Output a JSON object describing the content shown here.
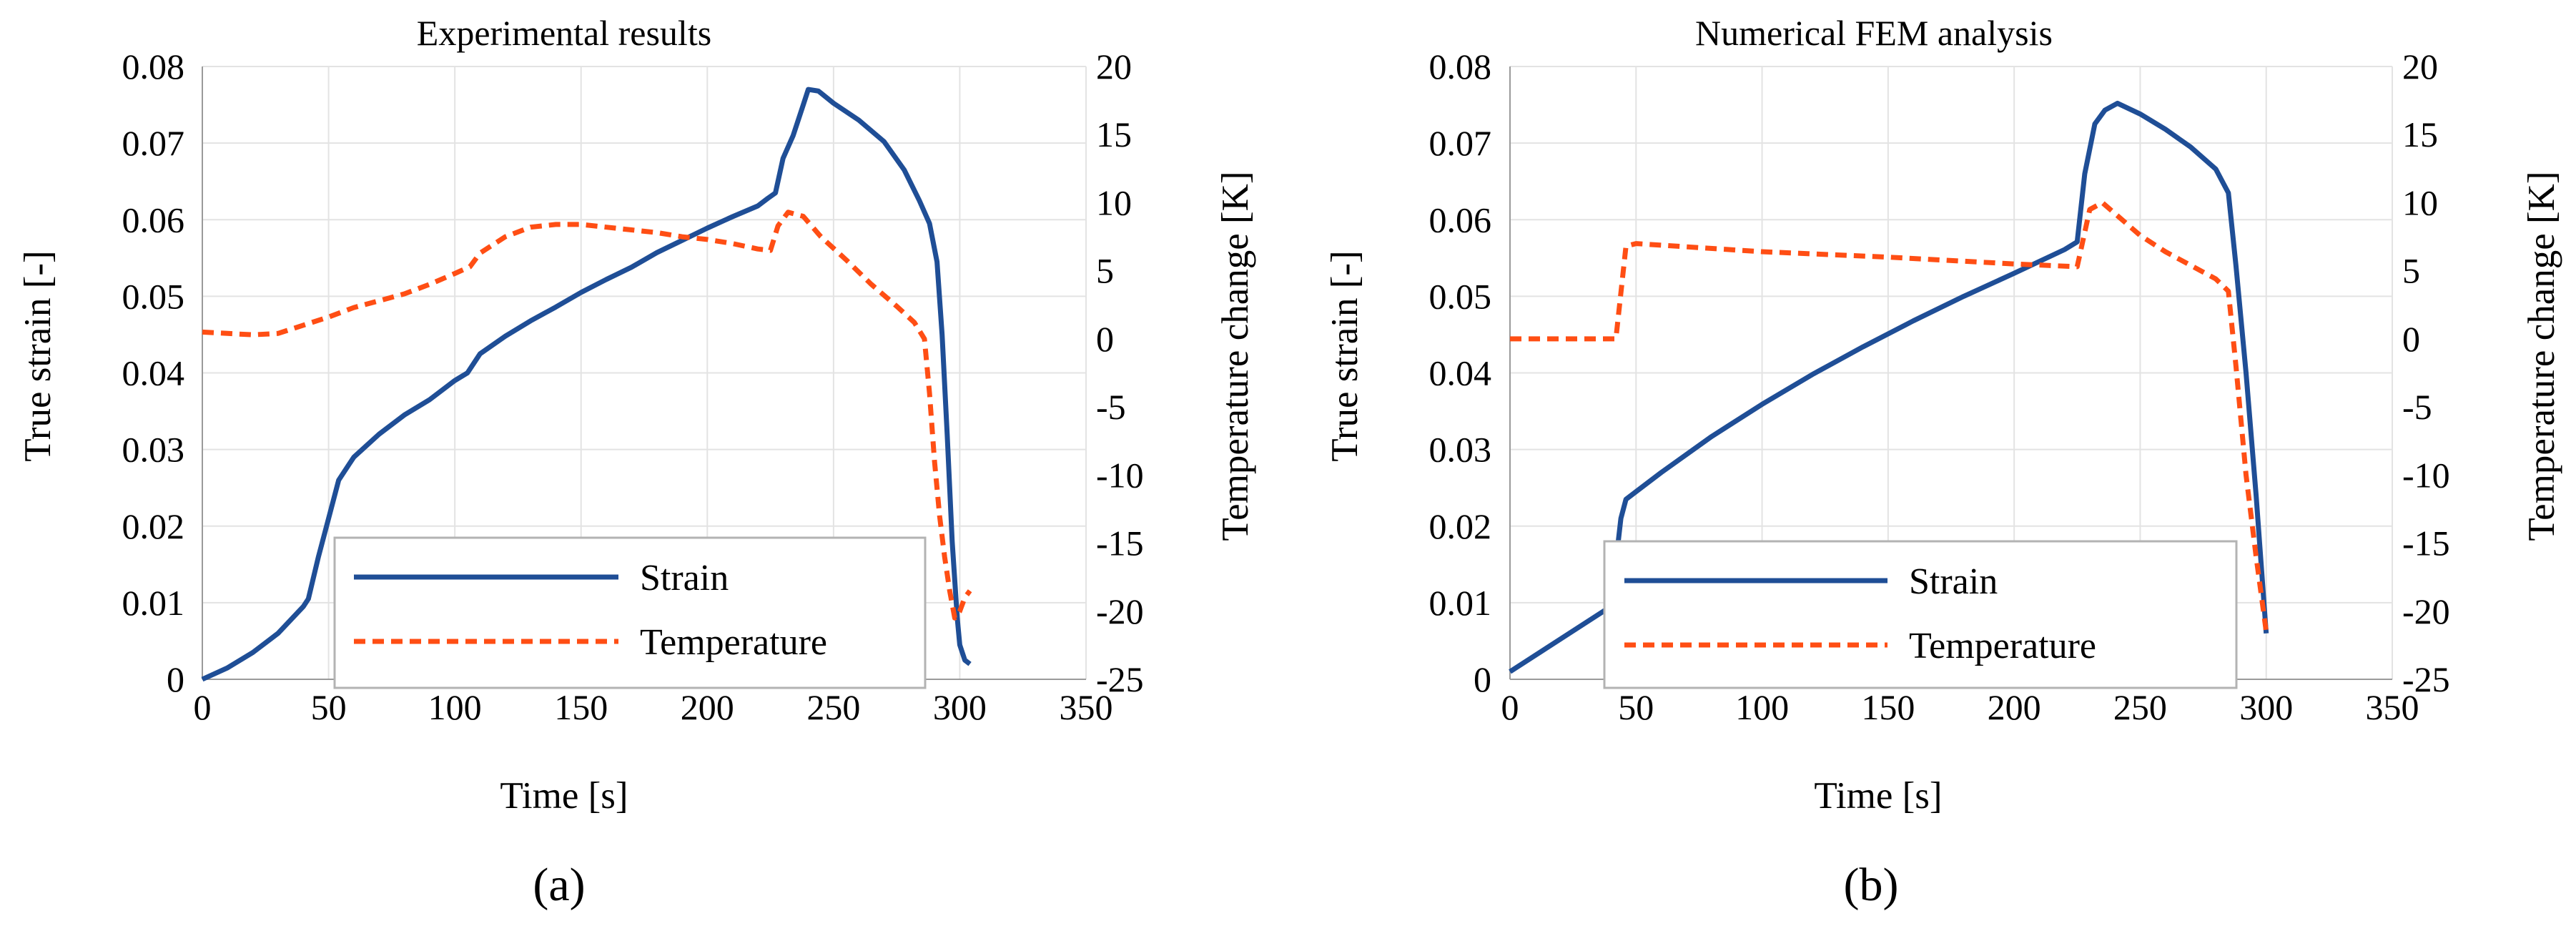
{
  "figure": {
    "panels": [
      "(a)",
      "(b)"
    ]
  },
  "legend": {
    "strain_label": "Strain",
    "temperature_label": "Temperature"
  },
  "colors": {
    "strain": "#1f4e96",
    "temperature": "#ff4e14",
    "grid": "#e3e3e3",
    "legend_border": "#b3b3b3"
  },
  "chart_data": [
    {
      "type": "line",
      "title": "Experimental results",
      "caption": "(a)",
      "xlabel": "Time [s]",
      "ylabel": "True strain [-]",
      "y2label": "Temperature change [K]",
      "xlim": [
        0,
        350
      ],
      "ylim": [
        0,
        0.08
      ],
      "y2lim": [
        -25,
        20
      ],
      "xticks": [
        "0",
        "50",
        "100",
        "150",
        "200",
        "250",
        "300",
        "350"
      ],
      "yticks": [
        "0",
        "0.01",
        "0.02",
        "0.03",
        "0.04",
        "0.05",
        "0.06",
        "0.07",
        "0.08"
      ],
      "y2ticks": [
        "-25",
        "-20",
        "-15",
        "-10",
        "-5",
        "0",
        "5",
        "10",
        "15",
        "20"
      ],
      "legend_position": "bottom-center",
      "series": [
        {
          "name": "Strain",
          "axis": "left",
          "style": "solid",
          "points": [
            [
              0,
              0
            ],
            [
              10,
              0.0015
            ],
            [
              20,
              0.0035
            ],
            [
              30,
              0.006
            ],
            [
              40,
              0.0095
            ],
            [
              42,
              0.0105
            ],
            [
              46,
              0.016
            ],
            [
              50,
              0.021
            ],
            [
              54,
              0.026
            ],
            [
              58,
              0.028
            ],
            [
              60,
              0.029
            ],
            [
              70,
              0.032
            ],
            [
              80,
              0.0345
            ],
            [
              90,
              0.0365
            ],
            [
              100,
              0.039
            ],
            [
              105,
              0.04
            ],
            [
              110,
              0.0425
            ],
            [
              120,
              0.0448
            ],
            [
              130,
              0.0468
            ],
            [
              140,
              0.0486
            ],
            [
              150,
              0.0505
            ],
            [
              160,
              0.0522
            ],
            [
              170,
              0.0538
            ],
            [
              180,
              0.0557
            ],
            [
              190,
              0.0573
            ],
            [
              200,
              0.0589
            ],
            [
              210,
              0.0604
            ],
            [
              220,
              0.0618
            ],
            [
              224,
              0.0628
            ],
            [
              227,
              0.0635
            ],
            [
              230,
              0.068
            ],
            [
              234,
              0.071
            ],
            [
              238,
              0.075
            ],
            [
              240,
              0.077
            ],
            [
              244,
              0.0768
            ],
            [
              250,
              0.0752
            ],
            [
              260,
              0.073
            ],
            [
              270,
              0.0702
            ],
            [
              278,
              0.0665
            ],
            [
              284,
              0.0625
            ],
            [
              288,
              0.0595
            ],
            [
              291,
              0.0545
            ],
            [
              293,
              0.045
            ],
            [
              295,
              0.032
            ],
            [
              297,
              0.018
            ],
            [
              299,
              0.008
            ],
            [
              300,
              0.0045
            ],
            [
              302,
              0.0025
            ],
            [
              304,
              0.002
            ]
          ]
        },
        {
          "name": "Temperature",
          "axis": "right",
          "style": "dashed",
          "points": [
            [
              0,
              0.5
            ],
            [
              10,
              0.4
            ],
            [
              20,
              0.3
            ],
            [
              30,
              0.4
            ],
            [
              40,
              1.0
            ],
            [
              50,
              1.6
            ],
            [
              60,
              2.3
            ],
            [
              70,
              2.8
            ],
            [
              80,
              3.3
            ],
            [
              90,
              4.0
            ],
            [
              100,
              4.8
            ],
            [
              106,
              5.3
            ],
            [
              110,
              6.3
            ],
            [
              120,
              7.5
            ],
            [
              130,
              8.2
            ],
            [
              140,
              8.4
            ],
            [
              150,
              8.4
            ],
            [
              160,
              8.2
            ],
            [
              170,
              8.0
            ],
            [
              180,
              7.8
            ],
            [
              190,
              7.5
            ],
            [
              200,
              7.3
            ],
            [
              210,
              7.0
            ],
            [
              220,
              6.6
            ],
            [
              225,
              6.5
            ],
            [
              228,
              8.3
            ],
            [
              232,
              9.3
            ],
            [
              238,
              9.0
            ],
            [
              245,
              7.5
            ],
            [
              255,
              5.8
            ],
            [
              265,
              4.0
            ],
            [
              275,
              2.4
            ],
            [
              282,
              1.2
            ],
            [
              286,
              0.0
            ],
            [
              288,
              -4.0
            ],
            [
              290,
              -9.0
            ],
            [
              292,
              -13.0
            ],
            [
              294,
              -16.0
            ],
            [
              296,
              -18.5
            ],
            [
              298,
              -20.5
            ],
            [
              300,
              -20.0
            ],
            [
              302,
              -19.0
            ],
            [
              304,
              -18.5
            ]
          ]
        }
      ]
    },
    {
      "type": "line",
      "title": "Numerical FEM analysis",
      "caption": "(b)",
      "xlabel": "Time [s]",
      "ylabel": "True strain [-]",
      "y2label": "Temperature change [K]",
      "xlim": [
        0,
        350
      ],
      "ylim": [
        0,
        0.08
      ],
      "y2lim": [
        -25,
        20
      ],
      "xticks": [
        "0",
        "50",
        "100",
        "150",
        "200",
        "250",
        "300",
        "350"
      ],
      "yticks": [
        "0",
        "0.01",
        "0.02",
        "0.03",
        "0.04",
        "0.05",
        "0.06",
        "0.07",
        "0.08"
      ],
      "y2ticks": [
        "-25",
        "-20",
        "-15",
        "-10",
        "-5",
        "0",
        "5",
        "10",
        "15",
        "20"
      ],
      "legend_position": "bottom-center",
      "series": [
        {
          "name": "Strain",
          "axis": "left",
          "style": "solid",
          "points": [
            [
              0,
              0.001
            ],
            [
              40,
              0.0095
            ],
            [
              44,
              0.021
            ],
            [
              46,
              0.0235
            ],
            [
              60,
              0.027
            ],
            [
              80,
              0.0317
            ],
            [
              100,
              0.0359
            ],
            [
              120,
              0.0398
            ],
            [
              140,
              0.0434
            ],
            [
              160,
              0.0468
            ],
            [
              180,
              0.05
            ],
            [
              200,
              0.053
            ],
            [
              220,
              0.0561
            ],
            [
              225,
              0.0571
            ],
            [
              228,
              0.066
            ],
            [
              232,
              0.0725
            ],
            [
              236,
              0.0743
            ],
            [
              241,
              0.0752
            ],
            [
              250,
              0.0738
            ],
            [
              260,
              0.0718
            ],
            [
              270,
              0.0695
            ],
            [
              280,
              0.0666
            ],
            [
              285,
              0.0635
            ],
            [
              288,
              0.054
            ],
            [
              292,
              0.04
            ],
            [
              296,
              0.024
            ],
            [
              300,
              0.006
            ]
          ]
        },
        {
          "name": "Temperature",
          "axis": "right",
          "style": "dashed",
          "points": [
            [
              0,
              0
            ],
            [
              42,
              0
            ],
            [
              46,
              6.8
            ],
            [
              50,
              7.0
            ],
            [
              100,
              6.4
            ],
            [
              150,
              6.0
            ],
            [
              200,
              5.5
            ],
            [
              225,
              5.3
            ],
            [
              230,
              9.5
            ],
            [
              235,
              10.0
            ],
            [
              240,
              9.2
            ],
            [
              250,
              7.6
            ],
            [
              260,
              6.4
            ],
            [
              270,
              5.4
            ],
            [
              280,
              4.4
            ],
            [
              285,
              3.5
            ],
            [
              288,
              -2.0
            ],
            [
              292,
              -10.0
            ],
            [
              296,
              -16.0
            ],
            [
              300,
              -21.5
            ]
          ]
        }
      ]
    }
  ]
}
